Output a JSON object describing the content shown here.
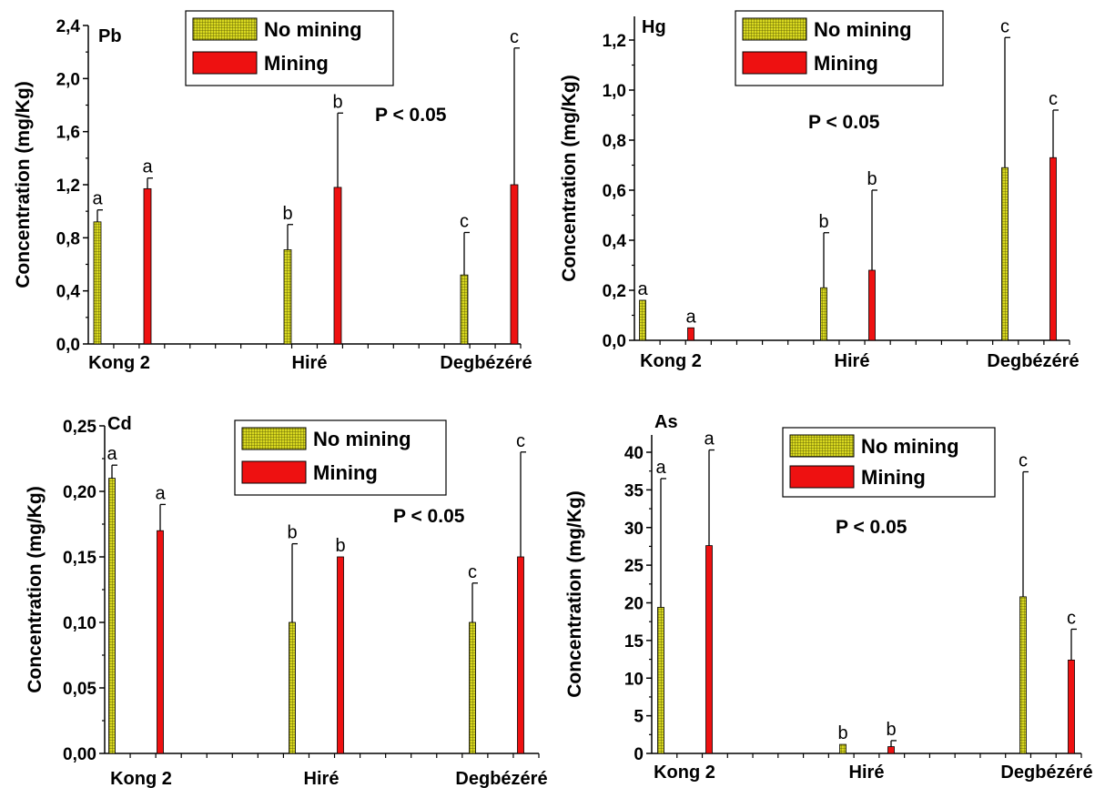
{
  "colors": {
    "no_mining": "#d8d820",
    "no_mining_grid": "#555500",
    "mining": "#ee1111",
    "error_bar": "#000000"
  },
  "chart_data": [
    {
      "type": "bar",
      "title": "Pb",
      "ylabel": "Concentration (mg/Kg)",
      "xlabel": "",
      "categories": [
        "Kong 2",
        "Hiré",
        "Degbézéré"
      ],
      "ylim": [
        0,
        2.4
      ],
      "yticks": [
        "0,0",
        "0,4",
        "0,8",
        "1,2",
        "1,6",
        "2,0",
        "2,4"
      ],
      "annotation": "P < 0.05",
      "legend": [
        "No mining",
        "Mining"
      ],
      "legend_position": "top-center",
      "grid": false,
      "series": [
        {
          "name": "No mining",
          "values": [
            0.92,
            0.71,
            0.52
          ],
          "errors": [
            0.09,
            0.19,
            0.32
          ],
          "letters": [
            "a",
            "b",
            "c"
          ]
        },
        {
          "name": "Mining",
          "values": [
            1.17,
            1.18,
            1.2
          ],
          "errors": [
            0.08,
            0.56,
            1.03
          ],
          "letters": [
            "a",
            "b",
            "c"
          ]
        }
      ]
    },
    {
      "type": "bar",
      "title": "Hg",
      "ylabel": "Concentration (mg/Kg)",
      "xlabel": "",
      "categories": [
        "Kong 2",
        "Hiré",
        "Degbézéré"
      ],
      "ylim": [
        0,
        1.3
      ],
      "yticks": [
        "0,0",
        "0,2",
        "0,4",
        "0,6",
        "0,8",
        "1,0",
        "1,2"
      ],
      "annotation": "P < 0.05",
      "legend": [
        "No mining",
        "Mining"
      ],
      "legend_position": "top-center",
      "grid": false,
      "series": [
        {
          "name": "No mining",
          "values": [
            0.16,
            0.21,
            0.69
          ],
          "errors": [
            0,
            0.22,
            0.52
          ],
          "letters": [
            "a",
            "b",
            "c"
          ]
        },
        {
          "name": "Mining",
          "values": [
            0.05,
            0.28,
            0.73
          ],
          "errors": [
            0,
            0.32,
            0.19
          ],
          "letters": [
            "a",
            "b",
            "c"
          ]
        }
      ]
    },
    {
      "type": "bar",
      "title": "Cd",
      "ylabel": "Concentration (mg/Kg)",
      "xlabel": "",
      "categories": [
        "Kong 2",
        "Hiré",
        "Degbézéré"
      ],
      "ylim": [
        0,
        0.25
      ],
      "yticks": [
        "0,00",
        "0,05",
        "0,10",
        "0,15",
        "0,20",
        "0,25"
      ],
      "annotation": "P < 0.05",
      "legend": [
        "No mining",
        "Mining"
      ],
      "legend_position": "top-center",
      "grid": false,
      "series": [
        {
          "name": "No mining",
          "values": [
            0.21,
            0.1,
            0.1
          ],
          "errors": [
            0.01,
            0.06,
            0.03
          ],
          "letters": [
            "a",
            "b",
            "c"
          ]
        },
        {
          "name": "Mining",
          "values": [
            0.17,
            0.15,
            0.15
          ],
          "errors": [
            0.02,
            0,
            0.08
          ],
          "letters": [
            "a",
            "b",
            "c"
          ]
        }
      ]
    },
    {
      "type": "bar",
      "title": "As",
      "ylabel": "Concentration (mg/Kg)",
      "xlabel": "",
      "categories": [
        "Kong 2",
        "Hiré",
        "Degbézéré"
      ],
      "ylim": [
        0,
        42
      ],
      "yticks": [
        "0",
        "5",
        "10",
        "15",
        "20",
        "25",
        "30",
        "35",
        "40"
      ],
      "annotation": "P < 0.05",
      "legend": [
        "No mining",
        "Mining"
      ],
      "legend_position": "top-center",
      "grid": false,
      "series": [
        {
          "name": "No mining",
          "values": [
            19.4,
            1.2,
            20.8
          ],
          "errors": [
            17.1,
            0,
            16.6
          ],
          "letters": [
            "a",
            "b",
            "c"
          ]
        },
        {
          "name": "Mining",
          "values": [
            27.6,
            0.9,
            12.4
          ],
          "errors": [
            12.7,
            0.8,
            4.1
          ],
          "letters": [
            "a",
            "b",
            "c"
          ]
        }
      ]
    }
  ]
}
